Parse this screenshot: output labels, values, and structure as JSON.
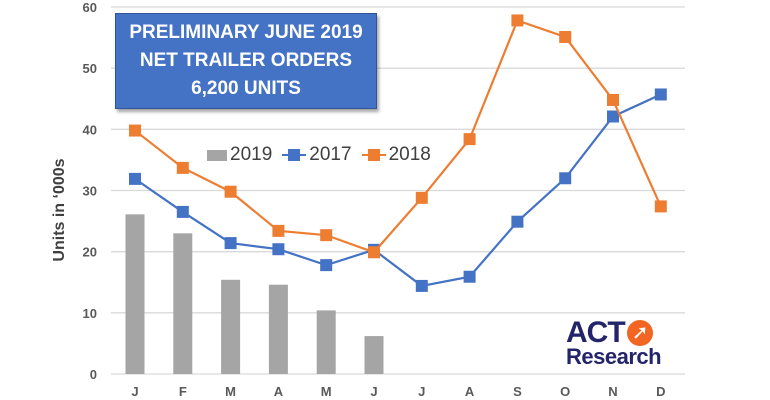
{
  "title": {
    "line1": "PRELIMINARY JUNE 2019",
    "line2": "NET TRAILER ORDERS",
    "line3": "6,200 UNITS",
    "background": "#4472C4"
  },
  "legend": {
    "items": [
      {
        "label": "2019",
        "type": "bar",
        "color": "#A5A5A5"
      },
      {
        "label": "2017",
        "type": "line",
        "color": "#4472C4"
      },
      {
        "label": "2018",
        "type": "line",
        "color": "#ED7D31"
      }
    ]
  },
  "logo": {
    "top": "ACT",
    "bottom": "Research",
    "arrow_icon": "➚"
  },
  "chart_data": {
    "type": "bar+line",
    "title": "PRELIMINARY JUNE 2019 NET TRAILER ORDERS 6,200 UNITS",
    "xlabel": "",
    "ylabel": "Units in ‘000s",
    "ylim": [
      0,
      60
    ],
    "yticks": [
      0,
      10,
      20,
      30,
      40,
      50,
      60
    ],
    "grid": true,
    "legend_position": "inside-upper-left",
    "categories": [
      "J",
      "F",
      "M",
      "A",
      "M",
      "J",
      "J",
      "A",
      "S",
      "O",
      "N",
      "D"
    ],
    "series": [
      {
        "name": "2019",
        "type": "bar",
        "color": "#A5A5A5",
        "values": [
          26.1,
          23.0,
          15.4,
          14.6,
          10.4,
          6.2,
          null,
          null,
          null,
          null,
          null,
          null
        ]
      },
      {
        "name": "2017",
        "type": "line",
        "color": "#4472C4",
        "values": [
          31.9,
          26.5,
          21.4,
          20.4,
          17.8,
          20.3,
          14.4,
          15.9,
          24.9,
          32.0,
          42.1,
          45.7
        ]
      },
      {
        "name": "2018",
        "type": "line",
        "color": "#ED7D31",
        "values": [
          39.8,
          33.7,
          29.8,
          23.4,
          22.7,
          19.9,
          28.8,
          38.4,
          57.8,
          55.1,
          44.8,
          27.4
        ]
      }
    ]
  }
}
